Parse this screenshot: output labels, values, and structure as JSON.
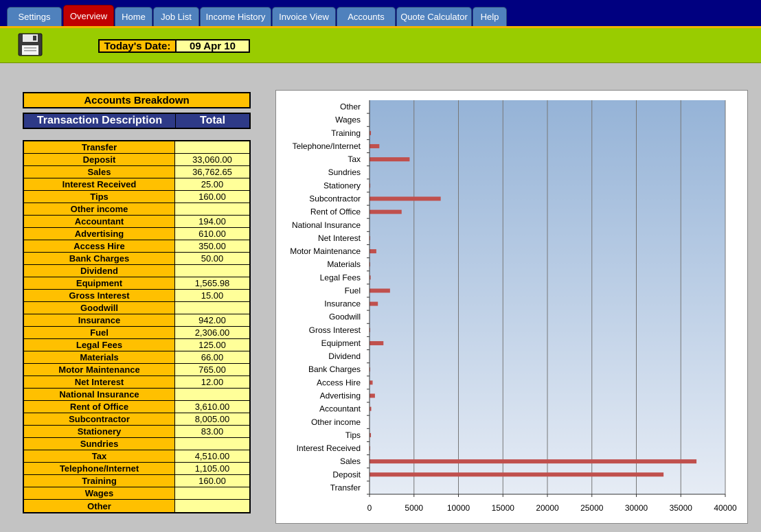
{
  "tabs": [
    {
      "label": "Settings",
      "active": false
    },
    {
      "label": "Overview",
      "active": true
    },
    {
      "label": "Home",
      "active": false
    },
    {
      "label": "Job List",
      "active": false
    },
    {
      "label": "Income History",
      "active": false
    },
    {
      "label": "Invoice View",
      "active": false
    },
    {
      "label": "Accounts",
      "active": false
    },
    {
      "label": "Quote Calculator",
      "active": false
    },
    {
      "label": "Help",
      "active": false
    }
  ],
  "header": {
    "date_label": "Today's Date:",
    "date_value": "09 Apr 10",
    "save_icon": "floppy-disk-icon"
  },
  "panel": {
    "title": "Accounts Breakdown",
    "col_description": "Transaction Description",
    "col_total": "Total",
    "rows": [
      {
        "name": "Transfer",
        "total": ""
      },
      {
        "name": "Deposit",
        "total": "33,060.00"
      },
      {
        "name": "Sales",
        "total": "36,762.65"
      },
      {
        "name": "Interest Received",
        "total": "25.00"
      },
      {
        "name": "Tips",
        "total": "160.00"
      },
      {
        "name": "Other income",
        "total": ""
      },
      {
        "name": "Accountant",
        "total": "194.00"
      },
      {
        "name": "Advertising",
        "total": "610.00"
      },
      {
        "name": "Access Hire",
        "total": "350.00"
      },
      {
        "name": "Bank Charges",
        "total": "50.00"
      },
      {
        "name": "Dividend",
        "total": ""
      },
      {
        "name": "Equipment",
        "total": "1,565.98"
      },
      {
        "name": "Gross Interest",
        "total": "15.00"
      },
      {
        "name": "Goodwill",
        "total": ""
      },
      {
        "name": "Insurance",
        "total": "942.00"
      },
      {
        "name": "Fuel",
        "total": "2,306.00"
      },
      {
        "name": "Legal Fees",
        "total": "125.00"
      },
      {
        "name": "Materials",
        "total": "66.00"
      },
      {
        "name": "Motor Maintenance",
        "total": "765.00"
      },
      {
        "name": "Net Interest",
        "total": "12.00"
      },
      {
        "name": "National Insurance",
        "total": ""
      },
      {
        "name": "Rent of Office",
        "total": "3,610.00"
      },
      {
        "name": "Subcontractor",
        "total": "8,005.00"
      },
      {
        "name": "Stationery",
        "total": "83.00"
      },
      {
        "name": "Sundries",
        "total": ""
      },
      {
        "name": "Tax",
        "total": "4,510.00"
      },
      {
        "name": "Telephone/Internet",
        "total": "1,105.00"
      },
      {
        "name": "Training",
        "total": "160.00"
      },
      {
        "name": "Wages",
        "total": ""
      },
      {
        "name": "Other",
        "total": ""
      }
    ]
  },
  "chart_data": {
    "type": "bar",
    "orientation": "horizontal",
    "categories": [
      "Transfer",
      "Deposit",
      "Sales",
      "Interest Received",
      "Tips",
      "Other income",
      "Accountant",
      "Advertising",
      "Access Hire",
      "Bank Charges",
      "Dividend",
      "Equipment",
      "Gross Interest",
      "Goodwill",
      "Insurance",
      "Fuel",
      "Legal Fees",
      "Materials",
      "Motor Maintenance",
      "Net Interest",
      "National Insurance",
      "Rent of Office",
      "Subcontractor",
      "Stationery",
      "Sundries",
      "Tax",
      "Telephone/Internet",
      "Training",
      "Wages",
      "Other"
    ],
    "values": [
      0,
      33060,
      36762.65,
      25,
      160,
      0,
      194,
      610,
      350,
      50,
      0,
      1565.98,
      15,
      0,
      942,
      2306,
      125,
      66,
      765,
      12,
      0,
      3610,
      8005,
      83,
      0,
      4510,
      1105,
      160,
      0,
      0
    ],
    "xlim": [
      0,
      40000
    ],
    "xticks": [
      "0",
      "5000",
      "10000",
      "15000",
      "20000",
      "25000",
      "30000",
      "35000",
      "40000"
    ],
    "grid": true,
    "legend": "none",
    "bar_color": "#c0504d",
    "plot_gradient": [
      "#95b3d7",
      "#e6ecf5"
    ]
  }
}
